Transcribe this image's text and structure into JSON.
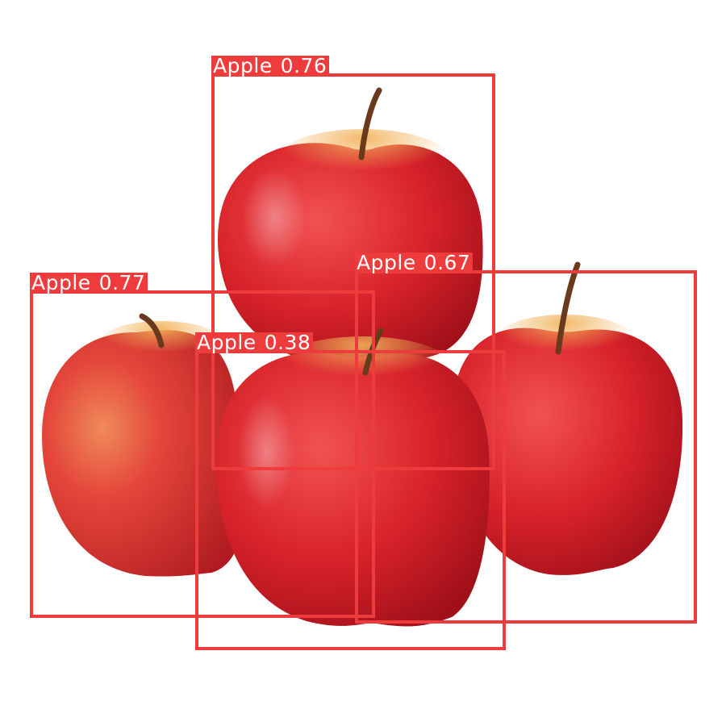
{
  "colors": {
    "background": "#ffffff",
    "box": "#ee3b3b",
    "label_text": "#ffffff",
    "apple_light": "#f24a4a",
    "apple_mid": "#d8222a",
    "apple_dark": "#a0101a",
    "apple_yellow": "#f2b25a",
    "stem": "#6a3a1c"
  },
  "detections": [
    {
      "label": "Apple",
      "score": "0.76"
    },
    {
      "label": "Apple",
      "score": "0.67"
    },
    {
      "label": "Apple",
      "score": "0.77"
    },
    {
      "label": "Apple",
      "score": "0.38"
    }
  ]
}
